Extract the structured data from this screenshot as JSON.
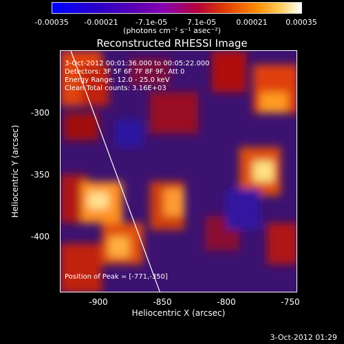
{
  "colorbar": {
    "ticks": [
      "-0.00035",
      "-0.00021",
      "-7.1e-05",
      "7.1e-05",
      "0.00021",
      "0.00035"
    ],
    "units": "(photons cm⁻² s⁻¹ asec⁻²)"
  },
  "plot": {
    "title": "Reconstructed RHESSI Image",
    "info_lines": [
      "3-Oct-2012 00:01:36.000 to 00:05:22.000",
      "Detectors: 3F 5F 6F 7F 8F 9F, Att 0",
      "Energy Range: 12.0 - 25.0 keV",
      "Clean    Total counts: 3.16E+03"
    ],
    "peak": "Position of Peak = [-771,-350]",
    "x_label": "Heliocentric X (arcsec)",
    "y_label": "Heliocentric Y (arcsec)",
    "x_ticks": [
      "-900",
      "-850",
      "-800",
      "-750"
    ],
    "y_ticks": [
      "-300",
      "-350",
      "-400"
    ]
  },
  "footer": {
    "date": "3-Oct-2012 01:29"
  }
}
